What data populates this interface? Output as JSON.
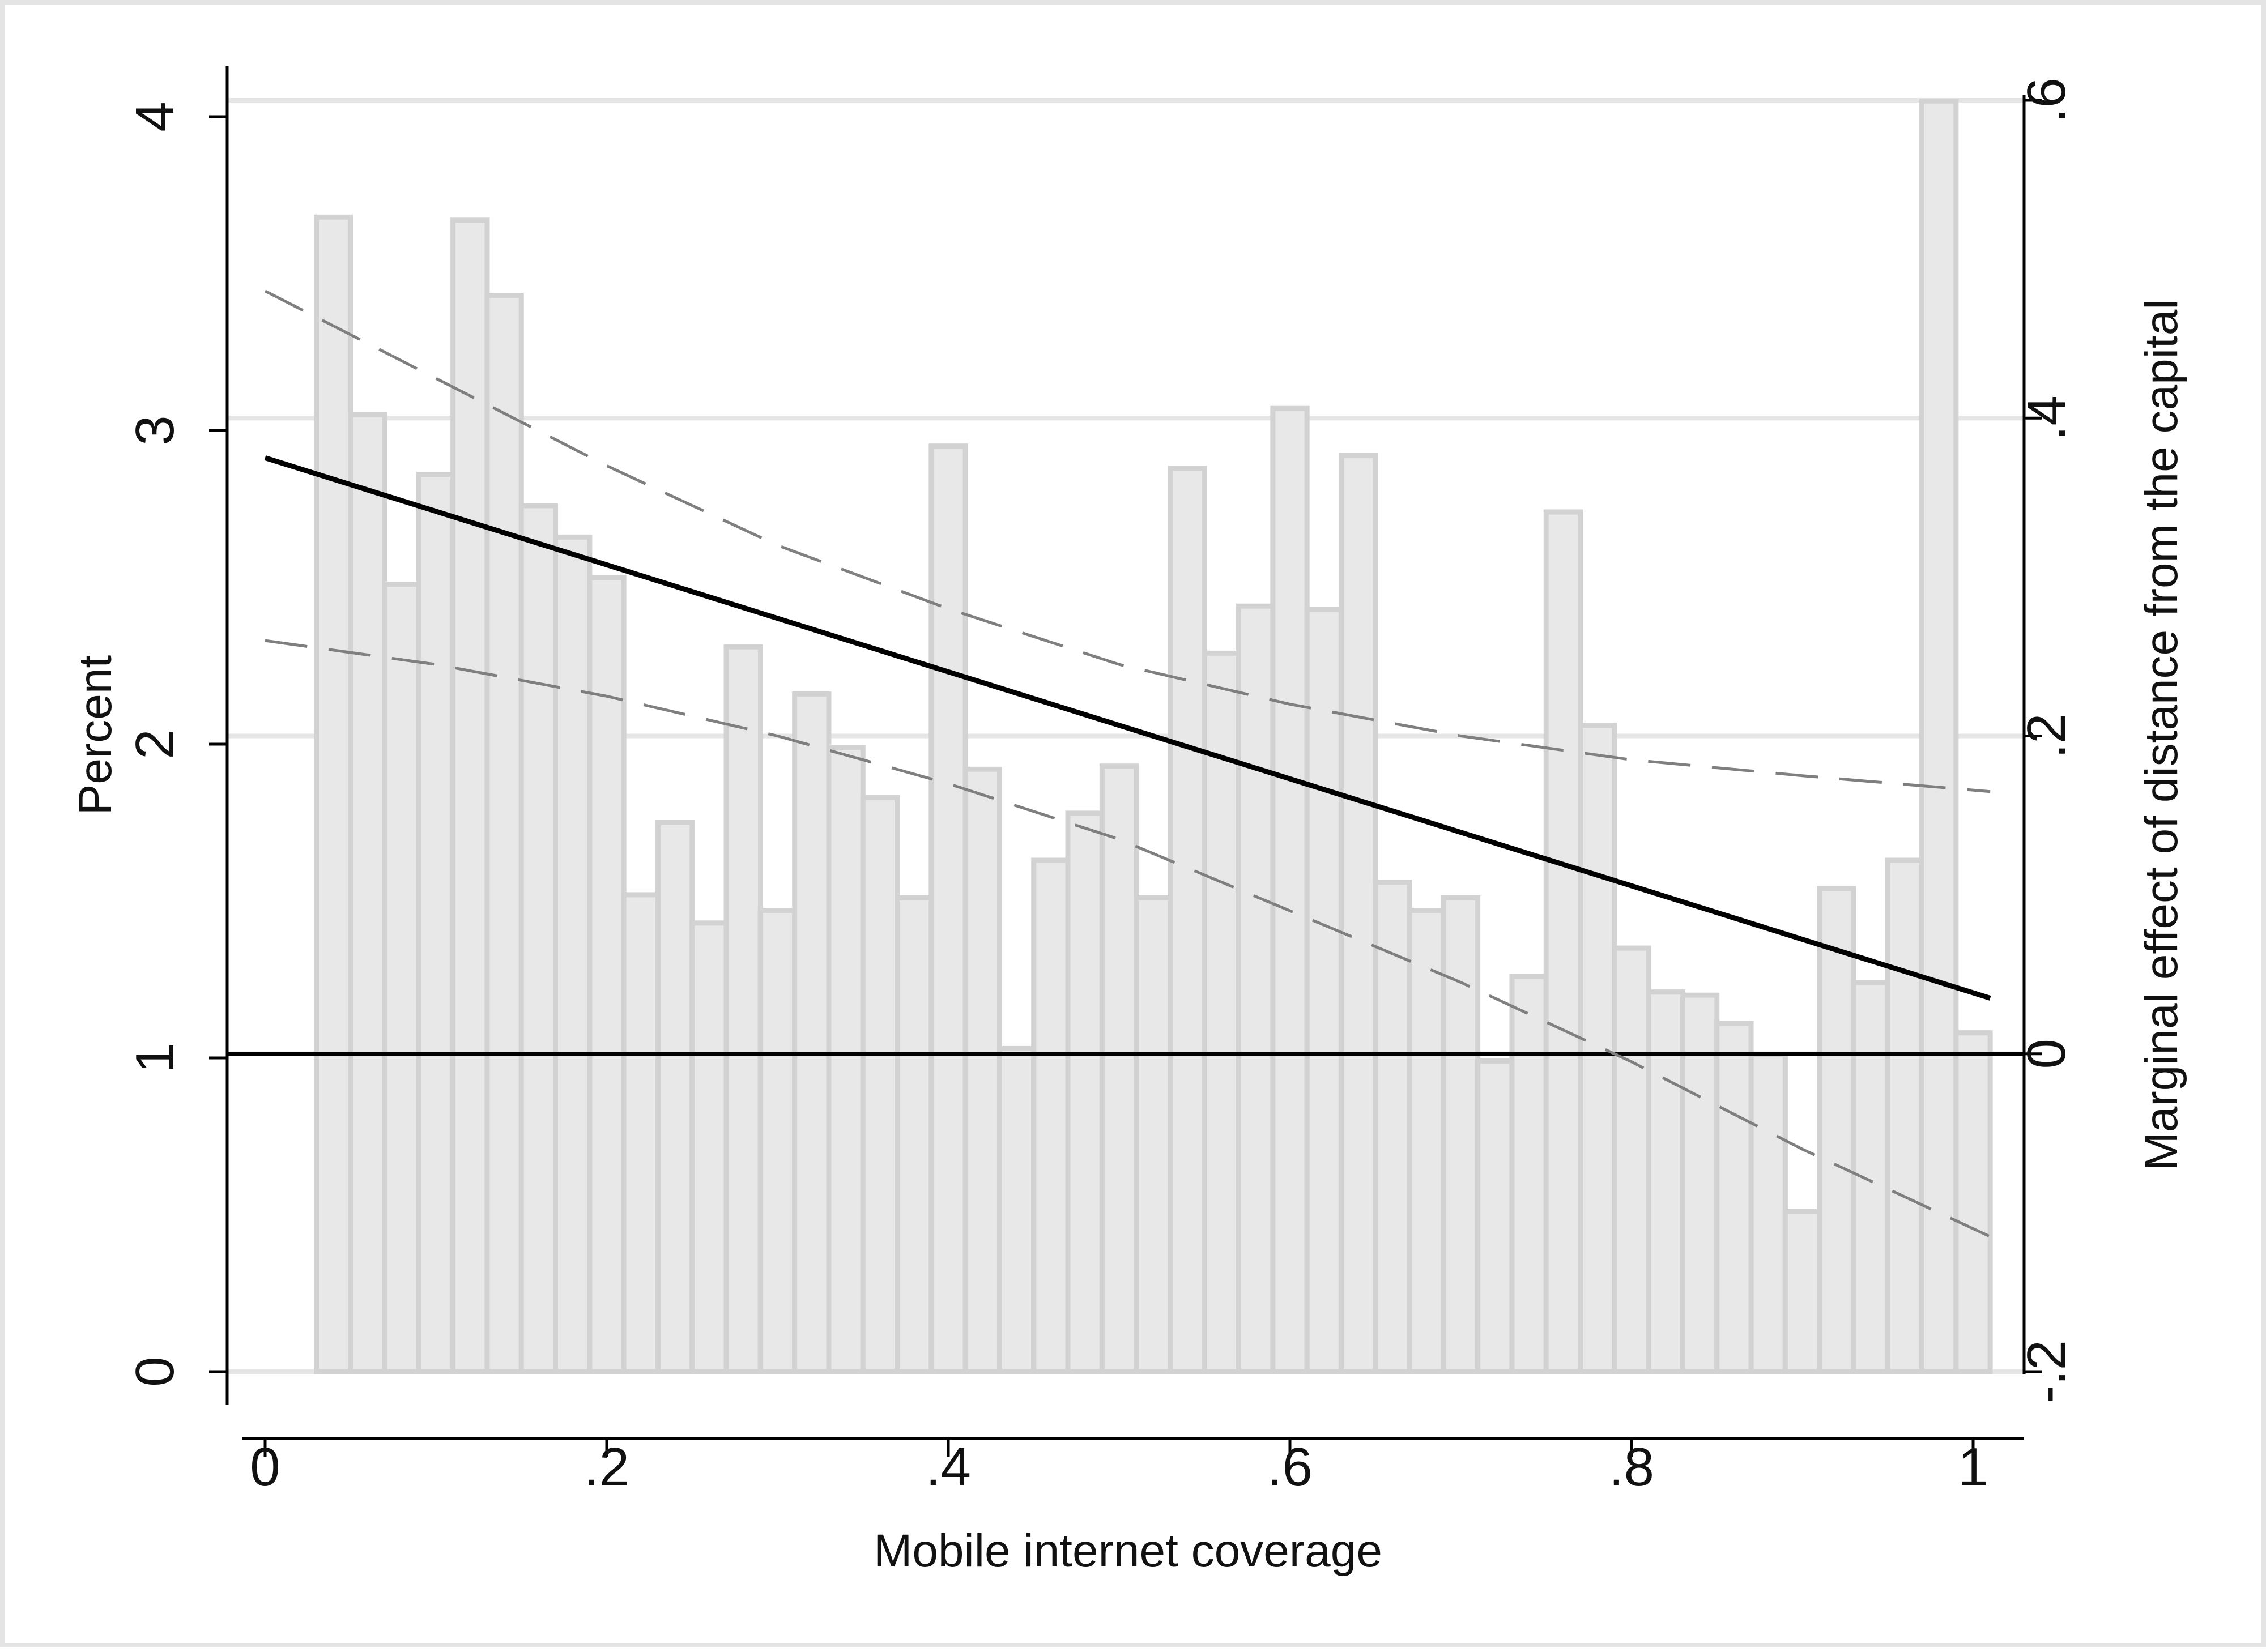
{
  "chart_data": {
    "type": "bar",
    "xlabel": "Mobile internet coverage",
    "ylabel": "Percent",
    "y2label": "Marginal effect of distance from the capital",
    "xlim": [
      -0.02,
      1.03
    ],
    "ylim": [
      -0.12,
      4.3
    ],
    "x_ticks": [
      0,
      0.2,
      0.4,
      0.6,
      0.8,
      1
    ],
    "x_tick_labels": [
      "0",
      ".2",
      ".4",
      ".6",
      ".8",
      "1"
    ],
    "y_ticks": [
      0,
      1,
      2,
      3,
      4
    ],
    "y_tick_labels": [
      "0",
      "1",
      "2",
      "3",
      "4"
    ],
    "y2_ticks": [
      -0.2,
      0,
      0.2,
      0.4,
      0.6
    ],
    "y2_tick_labels": [
      "-.2",
      "0",
      ".2",
      ".4",
      ".6"
    ],
    "y2_range_for_axis": [
      -0.2,
      0.6
    ],
    "grid": "horizontal",
    "bar_width": 0.02,
    "bin_starts": [
      0.03,
      0.05,
      0.07,
      0.09,
      0.11,
      0.13,
      0.15,
      0.17,
      0.19,
      0.21,
      0.23,
      0.25,
      0.27,
      0.29,
      0.31,
      0.33,
      0.35,
      0.37,
      0.39,
      0.41,
      0.43,
      0.45,
      0.47,
      0.49,
      0.51,
      0.53,
      0.55,
      0.57,
      0.59,
      0.61,
      0.63,
      0.65,
      0.67,
      0.69,
      0.71,
      0.73,
      0.75,
      0.77,
      0.79,
      0.81,
      0.83,
      0.85,
      0.87,
      0.89,
      0.91,
      0.93,
      0.95,
      0.97,
      0.99
    ],
    "values": [
      3.68,
      3.05,
      2.51,
      2.86,
      3.67,
      3.43,
      2.76,
      2.66,
      2.53,
      1.52,
      1.75,
      1.43,
      2.31,
      1.47,
      2.16,
      1.99,
      1.83,
      1.51,
      2.95,
      1.92,
      1.03,
      1.63,
      1.78,
      1.93,
      1.51,
      2.88,
      2.29,
      2.44,
      3.07,
      2.43,
      2.92,
      1.56,
      1.47,
      1.51,
      0.99,
      1.26,
      2.74,
      2.06,
      1.35,
      1.21,
      1.2,
      1.11,
      1.01,
      0.51,
      1.54,
      1.24,
      1.63,
      4.05,
      1.08
    ],
    "marginal_effect": {
      "x": [
        0,
        1.01
      ],
      "y": [
        0.375,
        0.035
      ]
    },
    "ci_upper": {
      "x": [
        0,
        0.1,
        0.2,
        0.3,
        0.4,
        0.5,
        0.6,
        0.7,
        0.8,
        0.9,
        1.01
      ],
      "y": [
        0.48,
        0.425,
        0.37,
        0.32,
        0.28,
        0.245,
        0.22,
        0.2,
        0.185,
        0.175,
        0.165
      ]
    },
    "ci_lower": {
      "x": [
        0,
        0.1,
        0.2,
        0.3,
        0.4,
        0.5,
        0.6,
        0.7,
        0.8,
        0.9,
        1.01
      ],
      "y": [
        0.26,
        0.245,
        0.225,
        0.2,
        0.17,
        0.135,
        0.09,
        0.045,
        -0.005,
        -0.06,
        -0.115
      ]
    },
    "reference_line_y2": 0,
    "colors": {
      "bar_fill": "#e8e8e8",
      "bar_edge": "#d2d2d2",
      "effect_line": "#000000",
      "ci_line": "#7f7f7f",
      "grid": "#e6e6e6",
      "axis": "#000000"
    }
  }
}
